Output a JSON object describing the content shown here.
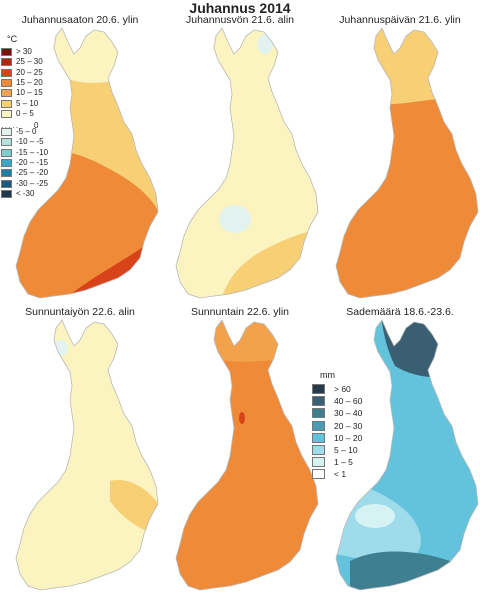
{
  "title": "Juhannus 2014",
  "panels": [
    {
      "title": "Juhannusaaton 20.6. ylin"
    },
    {
      "title": "Juhannusvön 21.6. alin"
    },
    {
      "title": "Juhannuspäivän 21.6. ylin"
    },
    {
      "title": "Sunnuntaiyön 22.6. alin"
    },
    {
      "title": "Sunnuntain 22.6. ylin"
    },
    {
      "title": "Sademäärä 18.6.-23.6."
    }
  ],
  "temperature_legend": {
    "unit": "°C",
    "zero_label": "0",
    "items": [
      {
        "label": "> 30",
        "color": "#7a1208"
      },
      {
        "label": "25 – 30",
        "color": "#b3240e"
      },
      {
        "label": "20 – 25",
        "color": "#d9431a"
      },
      {
        "label": "15 – 20",
        "color": "#ee8a38"
      },
      {
        "label": "10 – 15",
        "color": "#f2a24a"
      },
      {
        "label": "5 – 10",
        "color": "#f7d076"
      },
      {
        "label": "0 – 5",
        "color": "#fbf4c0"
      },
      {
        "label": "-5 – 0",
        "color": "#e2f2ee"
      },
      {
        "label": "-10 – -5",
        "color": "#b6e0dc"
      },
      {
        "label": "-15 – -10",
        "color": "#7fcccf"
      },
      {
        "label": "-20 – -15",
        "color": "#3aa8c4"
      },
      {
        "label": "-25 – -20",
        "color": "#1d7da6"
      },
      {
        "label": "-30 – -25",
        "color": "#1b5a80"
      },
      {
        "label": "< -30",
        "color": "#1f3550"
      }
    ]
  },
  "rain_legend": {
    "unit": "mm",
    "items": [
      {
        "label": "> 60",
        "color": "#263a4a"
      },
      {
        "label": "40 – 60",
        "color": "#3a5f72"
      },
      {
        "label": "30 – 40",
        "color": "#3f7f92"
      },
      {
        "label": "20 – 30",
        "color": "#4a9cb4"
      },
      {
        "label": "10 – 20",
        "color": "#63c2dc"
      },
      {
        "label": "5 – 10",
        "color": "#9edcec"
      },
      {
        "label": "1 – 5",
        "color": "#d5f3f3"
      },
      {
        "label": "< 1",
        "color": "#ffffff"
      }
    ]
  }
}
